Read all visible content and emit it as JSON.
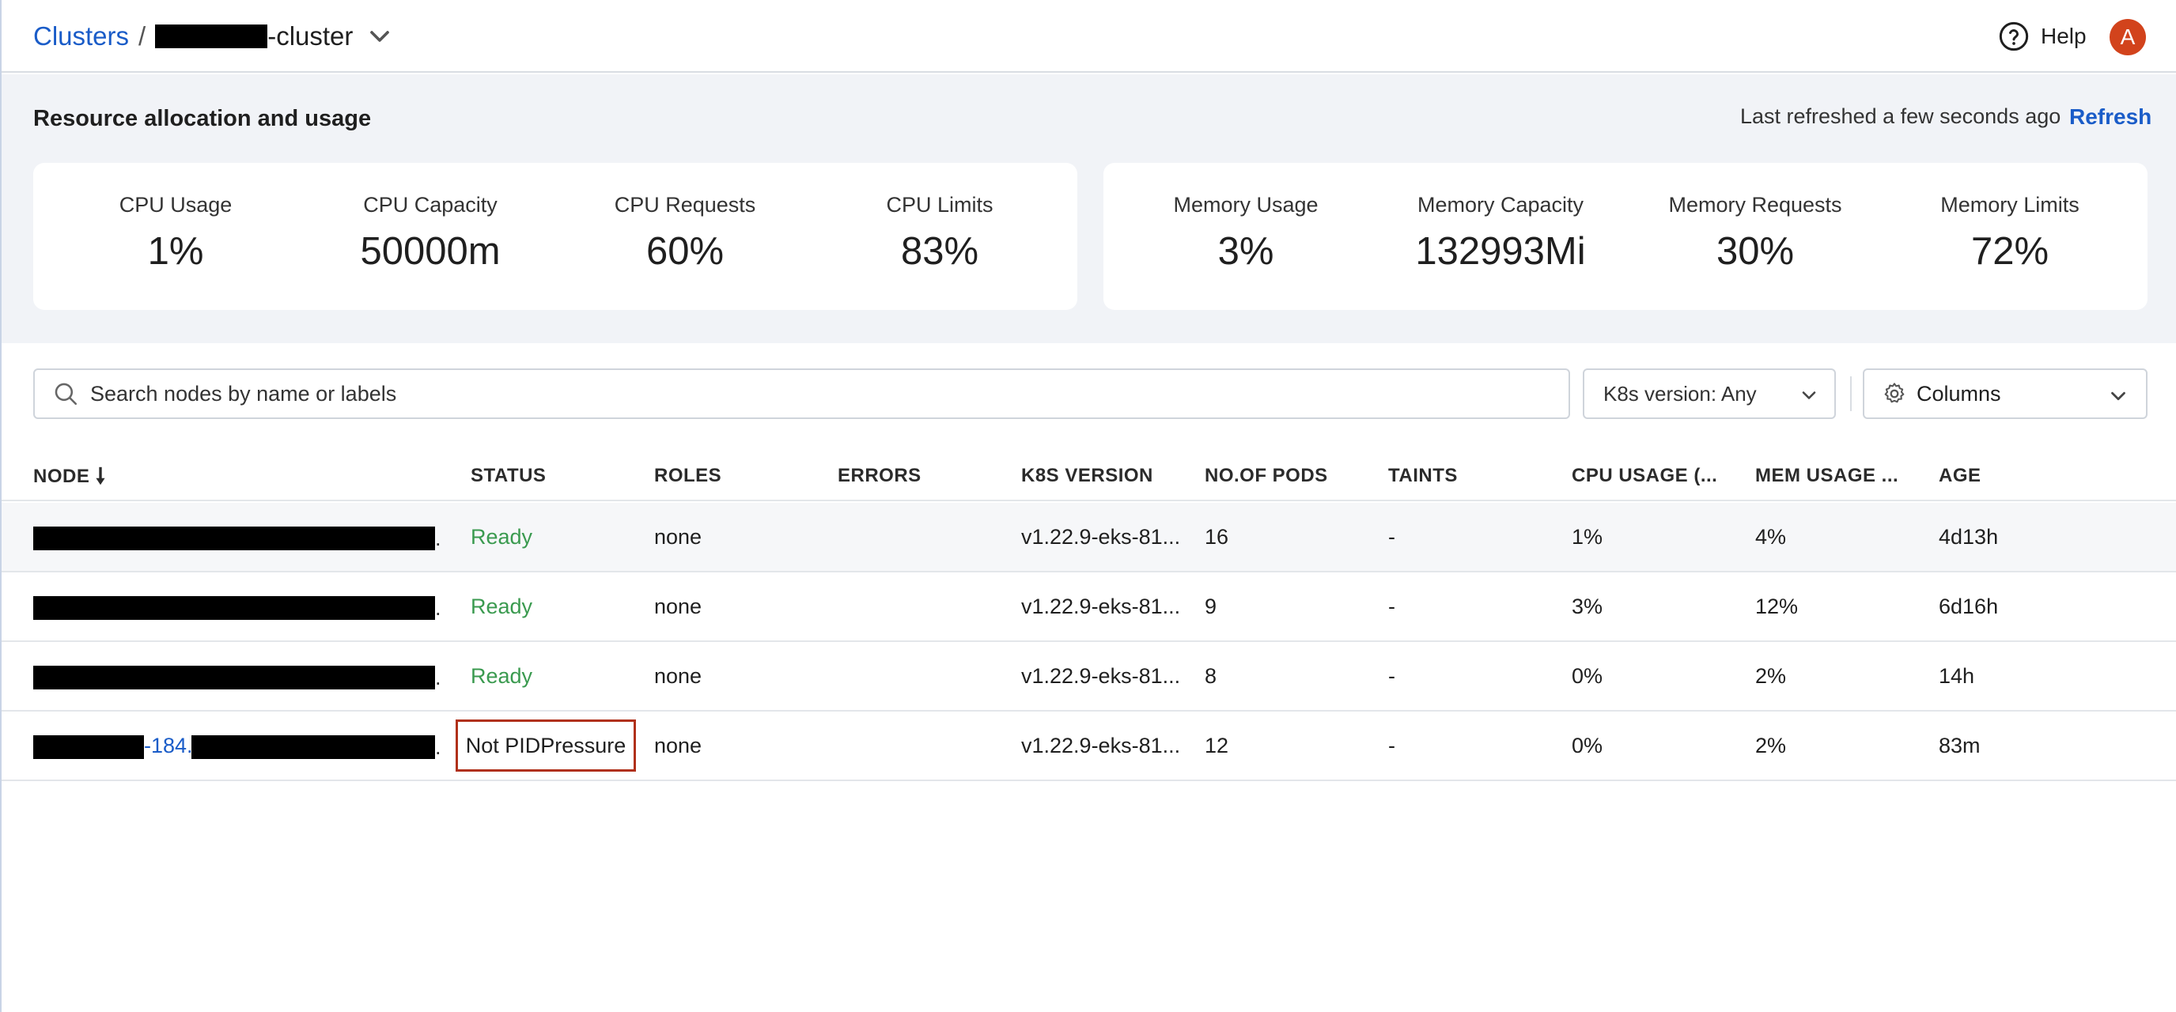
{
  "header": {
    "breadcrumb_root": "Clusters",
    "breadcrumb_sep": "/",
    "cluster_suffix": "-cluster",
    "help_label": "Help",
    "avatar_initial": "A"
  },
  "resource": {
    "title": "Resource allocation and usage",
    "last_refreshed": "Last refreshed a few seconds ago",
    "refresh_label": "Refresh",
    "cpu": [
      {
        "label": "CPU Usage",
        "value": "1%"
      },
      {
        "label": "CPU Capacity",
        "value": "50000m"
      },
      {
        "label": "CPU Requests",
        "value": "60%"
      },
      {
        "label": "CPU Limits",
        "value": "83%"
      }
    ],
    "memory": [
      {
        "label": "Memory Usage",
        "value": "3%"
      },
      {
        "label": "Memory Capacity",
        "value": "132993Mi"
      },
      {
        "label": "Memory Requests",
        "value": "30%"
      },
      {
        "label": "Memory Limits",
        "value": "72%"
      }
    ]
  },
  "filters": {
    "search_placeholder": "Search nodes by name or labels",
    "k8s_version": "K8s version: Any",
    "columns_label": "Columns"
  },
  "table": {
    "headers": [
      "NODE",
      "STATUS",
      "ROLES",
      "ERRORS",
      "K8S VERSION",
      "NO.OF PODS",
      "TAINTS",
      "CPU USAGE (...",
      "MEM USAGE ...",
      "AGE"
    ],
    "rows": [
      {
        "status": "Ready",
        "roles": "none",
        "errors": "",
        "k8s": "v1.22.9-eks-81...",
        "pods": "16",
        "taints": "-",
        "cpu": "1%",
        "mem": "4%",
        "age": "4d13h"
      },
      {
        "status": "Ready",
        "roles": "none",
        "errors": "",
        "k8s": "v1.22.9-eks-81...",
        "pods": "9",
        "taints": "-",
        "cpu": "3%",
        "mem": "12%",
        "age": "6d16h"
      },
      {
        "status": "Ready",
        "roles": "none",
        "errors": "",
        "k8s": "v1.22.9-eks-81...",
        "pods": "8",
        "taints": "-",
        "cpu": "0%",
        "mem": "2%",
        "age": "14h"
      },
      {
        "status": "Not PIDPressure",
        "roles": "none",
        "errors": "",
        "k8s": "v1.22.9-eks-81...",
        "pods": "12",
        "taints": "-",
        "cpu": "0%",
        "mem": "2%",
        "age": "83m",
        "node_visible_fragment": "-184."
      }
    ],
    "node_suffix": "."
  },
  "colors": {
    "link": "#1a5cc8",
    "ready": "#3a9a4f",
    "highlight_border": "#b0301a",
    "avatar": "#d2431c",
    "panel_bg": "#f1f3f7"
  },
  "icons": [
    "chevron-down-icon",
    "help-circle-icon",
    "search-icon",
    "gear-icon",
    "sort-down-icon"
  ]
}
